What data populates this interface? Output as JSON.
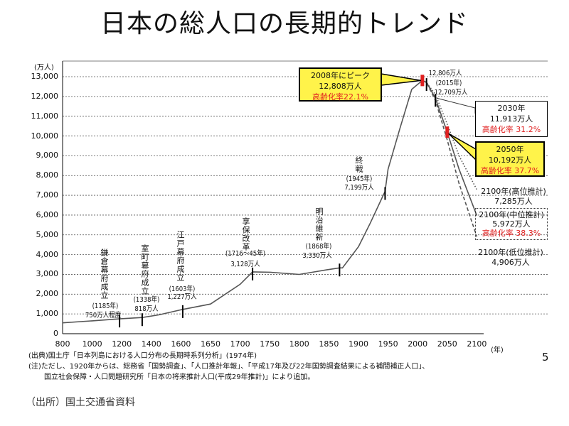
{
  "title": "日本の総人口の長期的トレンド",
  "slide_number": "5",
  "footnotes": {
    "source": "(出典)国土庁「日本列島における人口分布の長期時系列分析」(1974年)",
    "note_line1": "(注)ただし、1920年からは、総務省「国勢調査」、「人口推計年報」、「平成17年及び22年国勢調査結果による補間補正人口」、",
    "note_line2": "国立社会保障・人口問題研究所「日本の将来推計人口(平成29年推計)」により追加。",
    "origin": "（出所）国土交通省資料"
  },
  "chart_data": {
    "type": "line",
    "title": "",
    "ylabel": "(万人)",
    "xlabel": "(年)",
    "ylim": [
      0,
      13000
    ],
    "y_ticks": [
      "0",
      "1,000",
      "2,000",
      "3,000",
      "4,000",
      "5,000",
      "6,000",
      "7,000",
      "8,000",
      "9,000",
      "10,000",
      "11,000",
      "12,000",
      "13,000"
    ],
    "x_ticks": [
      "800",
      "1000",
      "1200",
      "1400",
      "1600",
      "1650",
      "1700",
      "1750",
      "1800",
      "1850",
      "1900",
      "1950",
      "2000",
      "2050",
      "2100"
    ],
    "x_scale": "non-uniform (200-year steps to 1600, then 50-year steps)",
    "grid": "horizontal dashed",
    "series": [
      {
        "style": "solid",
        "x": [
          800,
          1000,
          1185,
          1338,
          1450,
          1603,
          1650,
          1700,
          1721,
          1750,
          1800,
          1846,
          1868,
          1873,
          1900,
          1920,
          1945,
          1950,
          1970,
          1990,
          2008
        ],
        "y": [
          550,
          650,
          750,
          818,
          950,
          1227,
          1500,
          2500,
          3128,
          3110,
          3000,
          3230,
          3330,
          3330,
          4400,
          5596,
          7199,
          8320,
          10372,
          12361,
          12808
        ]
      },
      {
        "style": "solid",
        "label": "中位推計",
        "x": [
          2008,
          2015,
          2030,
          2050,
          2070,
          2100
        ],
        "y": [
          12808,
          12709,
          11913,
          10192,
          8323,
          5972
        ]
      },
      {
        "style": "dotted",
        "label": "高位推計",
        "x": [
          2008,
          2015,
          2030,
          2050,
          2070,
          2100
        ],
        "y": [
          12808,
          12709,
          12100,
          10600,
          9000,
          7285
        ]
      },
      {
        "style": "dashed",
        "label": "低位推計",
        "x": [
          2008,
          2015,
          2030,
          2050,
          2070,
          2100
        ],
        "y": [
          12808,
          12709,
          11800,
          9800,
          7600,
          4906
        ]
      }
    ],
    "markers": [
      {
        "year": 1185,
        "value": 750,
        "color": "#000000"
      },
      {
        "year": 1338,
        "value": 818,
        "color": "#000000"
      },
      {
        "year": 1603,
        "value": 1227,
        "color": "#000000"
      },
      {
        "year": 1721,
        "value": 3128,
        "color": "#000000"
      },
      {
        "year": 1868,
        "value": 3330,
        "color": "#000000"
      },
      {
        "year": 1945,
        "value": 7199,
        "color": "#000000"
      },
      {
        "year": 2015,
        "value": 12709,
        "color": "#000000"
      },
      {
        "year": 2030,
        "value": 11913,
        "color": "#000000"
      },
      {
        "year": 2008,
        "value": 12808,
        "color": "#e02020"
      },
      {
        "year": 2050,
        "value": 10192,
        "color": "#e02020"
      }
    ],
    "annotations": {
      "kamakura": {
        "event": "鎌倉幕府成立",
        "year": "(1185年)",
        "pop": "750万人程度"
      },
      "muromachi": {
        "event": "室町幕府成立",
        "year": "(1338年)",
        "pop": "818万人"
      },
      "edo": {
        "event": "江戸幕府成立",
        "year": "(1603年)",
        "pop": "1,227万人"
      },
      "kyoho": {
        "event": "享保改革",
        "year": "(1716～45年)",
        "pop": "3,128万人"
      },
      "meiji": {
        "event": "明治維新",
        "year": "(1868年)",
        "pop": "3,330万人"
      },
      "war_end": {
        "event": "終戦",
        "year": "(1945年)",
        "pop": "7,199万人"
      },
      "peak": {
        "line1": "2008年にピーク",
        "line2": "12,808万人",
        "line3": "高齢化率22.1%"
      },
      "y2015": {
        "line1": "12,806万人",
        "line2": "(2015年)",
        "line3": "12,709万人"
      },
      "y2030": {
        "line1": "2030年",
        "line2": "11,913万人",
        "line3": "高齢化率 31.2%"
      },
      "y2050": {
        "line1": "2050年",
        "line2": "10,192万人",
        "line3": "高齢化率 37.7%"
      },
      "high": {
        "line1": "2100年(高位推計)",
        "line2": "7,285万人"
      },
      "mid": {
        "line1": "2100年(中位推計)",
        "line2": "5,972万人",
        "line3": "高齢化率 38.3%"
      },
      "low": {
        "line1": "2100年(低位推計)",
        "line2": "4,906万人"
      }
    },
    "colors": {
      "highlight_box": "#fff34a",
      "accent_red": "#e02020",
      "line": "#555555"
    }
  }
}
